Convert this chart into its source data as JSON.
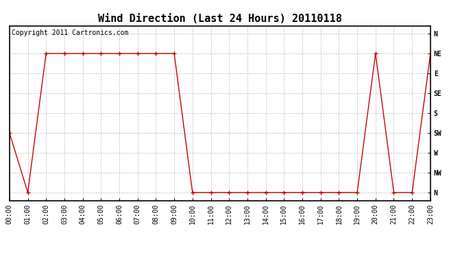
{
  "title": "Wind Direction (Last 24 Hours) 20110118",
  "copyright_text": "Copyright 2011 Cartronics.com",
  "background_color": "#ffffff",
  "plot_bg_color": "#ffffff",
  "grid_color": "#bbbbbb",
  "line_color": "#cc0000",
  "marker_color": "#cc0000",
  "ytick_labels": [
    "N",
    "NW",
    "W",
    "SW",
    "S",
    "SE",
    "E",
    "NE",
    "N"
  ],
  "ytick_values": [
    0,
    1,
    2,
    3,
    4,
    5,
    6,
    7,
    8
  ],
  "x_hours": [
    0,
    1,
    2,
    3,
    4,
    5,
    6,
    7,
    8,
    9,
    10,
    11,
    12,
    13,
    14,
    15,
    16,
    17,
    18,
    19,
    20,
    21,
    22,
    23
  ],
  "y_values": [
    3,
    0,
    7,
    7,
    7,
    7,
    7,
    7,
    7,
    7,
    0,
    0,
    0,
    0,
    0,
    0,
    0,
    0,
    0,
    0,
    7,
    0,
    0,
    7
  ],
  "xlim": [
    0,
    23
  ],
  "ylim": [
    -0.4,
    8.4
  ],
  "title_fontsize": 11,
  "tick_fontsize": 7,
  "copyright_fontsize": 7
}
